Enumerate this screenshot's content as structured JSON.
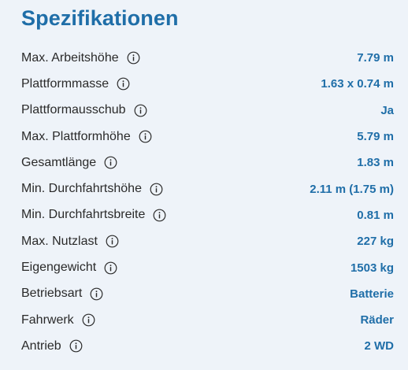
{
  "title": "Spezifikationen",
  "info_icon": "info-circle-icon",
  "colors": {
    "accent": "#1f6ea8",
    "background": "#eef3f9",
    "text": "#2a2a2a"
  },
  "specs": [
    {
      "label": "Max. Arbeitshöhe",
      "value": "7.79 m"
    },
    {
      "label": "Plattformmasse",
      "value": "1.63 x 0.74 m"
    },
    {
      "label": "Plattformausschub",
      "value": "Ja"
    },
    {
      "label": "Max. Plattformhöhe",
      "value": "5.79 m"
    },
    {
      "label": "Gesamtlänge",
      "value": "1.83 m"
    },
    {
      "label": "Min. Durchfahrtshöhe",
      "value": "2.11 m (1.75 m)"
    },
    {
      "label": "Min. Durchfahrtsbreite",
      "value": "0.81 m"
    },
    {
      "label": "Max. Nutzlast",
      "value": "227 kg"
    },
    {
      "label": "Eigengewicht",
      "value": "1503 kg"
    },
    {
      "label": "Betriebsart",
      "value": "Batterie"
    },
    {
      "label": "Fahrwerk",
      "value": "Räder"
    },
    {
      "label": "Antrieb",
      "value": "2 WD"
    }
  ]
}
